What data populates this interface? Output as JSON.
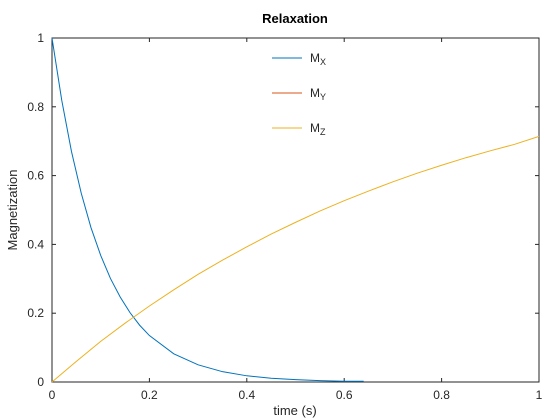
{
  "chart_data": {
    "type": "line",
    "title": "Relaxation",
    "xlabel": "time (s)",
    "ylabel": "Magnetization",
    "xlim": [
      0,
      1
    ],
    "ylim": [
      0,
      1
    ],
    "xticks": [
      "0",
      "0.2",
      "0.4",
      "0.6",
      "0.8",
      "1"
    ],
    "yticks": [
      "0",
      "0.2",
      "0.4",
      "0.6",
      "0.8",
      "1"
    ],
    "grid": false,
    "legend": {
      "placement": "top-center"
    },
    "series": [
      {
        "name": "M",
        "sub": "X",
        "color": "#0072bd",
        "x": [
          0,
          0.02,
          0.04,
          0.06,
          0.08,
          0.1,
          0.12,
          0.14,
          0.16,
          0.18,
          0.2,
          0.25,
          0.3,
          0.35,
          0.4,
          0.45,
          0.5,
          0.55,
          0.6,
          0.64
        ],
        "y": [
          1.0,
          0.819,
          0.67,
          0.549,
          0.449,
          0.368,
          0.301,
          0.247,
          0.202,
          0.165,
          0.135,
          0.082,
          0.05,
          0.03,
          0.018,
          0.011,
          0.007,
          0.004,
          0.002,
          0.002
        ]
      },
      {
        "name": "M",
        "sub": "Y",
        "color": "#d95319",
        "x": [],
        "y": []
      },
      {
        "name": "M",
        "sub": "Z",
        "color": "#edb120",
        "x": [
          0,
          0.05,
          0.1,
          0.15,
          0.2,
          0.25,
          0.3,
          0.35,
          0.4,
          0.45,
          0.5,
          0.55,
          0.6,
          0.65,
          0.7,
          0.75,
          0.8,
          0.85,
          0.9,
          0.95,
          1.0
        ],
        "y": [
          0,
          0.06,
          0.118,
          0.171,
          0.221,
          0.268,
          0.313,
          0.354,
          0.393,
          0.43,
          0.464,
          0.497,
          0.527,
          0.555,
          0.582,
          0.607,
          0.63,
          0.652,
          0.672,
          0.691,
          0.714
        ]
      }
    ]
  }
}
